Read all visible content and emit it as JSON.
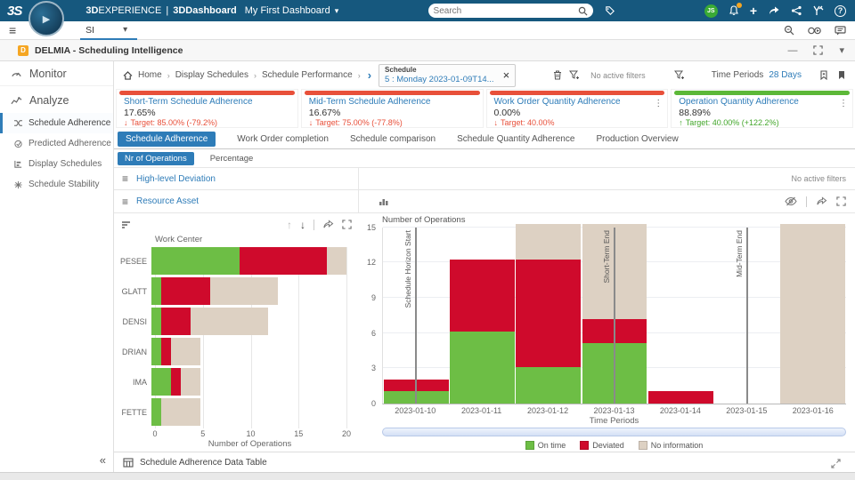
{
  "topbar": {
    "logo": "3S",
    "brand_bold": "3D",
    "brand_rest": "EXPERIENCE",
    "brand_sep": "|",
    "product": "3DDashboard",
    "dashboard_name": "My First Dashboard",
    "search_placeholder": "Search",
    "avatar_initials": "JS"
  },
  "tabbar": {
    "active_tab": "SI"
  },
  "widget_header": {
    "title": "DELMIA - Scheduling Intelligence"
  },
  "sidebar": {
    "monitor_label": "Monitor",
    "analyze_label": "Analyze",
    "items": [
      {
        "label": "Schedule Adherence",
        "active": true
      },
      {
        "label": "Predicted Adherence",
        "active": false
      },
      {
        "label": "Display Schedules",
        "active": false
      },
      {
        "label": "Schedule Stability",
        "active": false
      }
    ]
  },
  "breadcrumb": {
    "items": [
      "Home",
      "Display Schedules",
      "Schedule Performance"
    ],
    "schedule_tab": {
      "title": "Schedule",
      "subtitle": "5 : Monday 2023-01-09T14..."
    },
    "no_active_filters": "No active filters",
    "time_periods_label": "Time Periods",
    "time_periods_value": "28 Days"
  },
  "kpis": [
    {
      "title": "Short-Term Schedule Adherence",
      "value": "17.65%",
      "trend": "down",
      "target": "Target: 85.00% (-79.2%)",
      "status_color": "#e8503a"
    },
    {
      "title": "Mid-Term Schedule Adherence",
      "value": "16.67%",
      "trend": "down",
      "target": "Target: 75.00% (-77.8%)",
      "status_color": "#e8503a"
    },
    {
      "title": "Work Order Quantity Adherence",
      "value": "0.00%",
      "trend": "down",
      "target": "Target: 40.00%",
      "status_color": "#e8503a"
    },
    {
      "title": "Operation Quantity Adherence",
      "value": "88.89%",
      "trend": "up",
      "target": "Target: 40.00% (+122.2%)",
      "status_color": "#5cb838"
    }
  ],
  "tabs": [
    {
      "label": "Schedule Adherence",
      "active": true
    },
    {
      "label": "Work Order completion",
      "active": false
    },
    {
      "label": "Schedule comparison",
      "active": false
    },
    {
      "label": "Schedule Quantity Adherence",
      "active": false
    },
    {
      "label": "Production Overview",
      "active": false
    }
  ],
  "subtabs": [
    {
      "label": "Nr of Operations",
      "active": true
    },
    {
      "label": "Percentage",
      "active": false
    }
  ],
  "sections": {
    "high_level": {
      "title": "High-level Deviation",
      "filters": "No active filters"
    },
    "resource_asset": {
      "title": "Resource Asset"
    }
  },
  "footer": {
    "data_table_label": "Schedule Adherence Data Table"
  },
  "icons": {
    "hamburger": "≡",
    "chevron_down": "▾",
    "breadcrumb_sep": "›",
    "big_chevron": "›",
    "close": "×",
    "kebab": "⋮",
    "arrow_up": "↑",
    "arrow_down": "↓",
    "minimize": "—",
    "collapse": "«",
    "plus": "+",
    "play": "▶",
    "help": "?"
  },
  "colors": {
    "topbar_blue": "#16587e",
    "accent_blue": "#2e7cb8",
    "kpi_red": "#e8503a",
    "kpi_green": "#5cb838",
    "on_time_green": "#6dbe45",
    "deviated_red": "#cf0a2c",
    "no_info_beige": "#ddd1c3"
  },
  "chart_data": [
    {
      "type": "bar",
      "orientation": "horizontal",
      "title": "Work Center",
      "xlabel": "Number of Operations",
      "categories": [
        "PESEE",
        "GLATT",
        "DENSI",
        "DRIAN",
        "IMA",
        "FETTE"
      ],
      "series": [
        {
          "name": "On time",
          "color": "#6dbe45",
          "values": [
            9,
            1,
            1,
            1,
            2,
            1
          ]
        },
        {
          "name": "Deviated",
          "color": "#cf0a2c",
          "values": [
            9,
            5,
            3,
            1,
            1,
            0
          ]
        },
        {
          "name": "No information",
          "color": "#ddd1c3",
          "values": [
            2,
            7,
            8,
            3,
            2,
            4
          ]
        }
      ],
      "xlim": [
        0,
        20
      ],
      "xticks": [
        0,
        5,
        10,
        15,
        20
      ],
      "grid": true,
      "legend_position": "none"
    },
    {
      "type": "bar",
      "orientation": "vertical",
      "title": "",
      "ylabel": "Number of Operations",
      "xlabel": "Time Periods",
      "categories": [
        "2023-01-10",
        "2023-01-11",
        "2023-01-12",
        "2023-01-13",
        "2023-01-14",
        "2023-01-15",
        "2023-01-16"
      ],
      "series": [
        {
          "name": "On time",
          "color": "#6dbe45",
          "values": [
            1,
            6,
            3,
            5,
            0,
            0,
            0
          ]
        },
        {
          "name": "Deviated",
          "color": "#cf0a2c",
          "values": [
            1,
            6,
            9,
            2,
            1,
            0,
            0
          ]
        },
        {
          "name": "No information",
          "color": "#ddd1c3",
          "values": [
            0,
            0,
            3,
            8,
            0,
            0,
            15
          ]
        }
      ],
      "ylim": [
        0,
        15
      ],
      "yticks": [
        0,
        3,
        6,
        9,
        12,
        15
      ],
      "grid": true,
      "legend_position": "bottom",
      "markers": [
        {
          "label": "Schedule Horizon Start",
          "category_index": 0
        },
        {
          "label": "Short-Term End",
          "category_index": 3
        },
        {
          "label": "Mid-Term End",
          "category_index": 5
        }
      ]
    }
  ]
}
